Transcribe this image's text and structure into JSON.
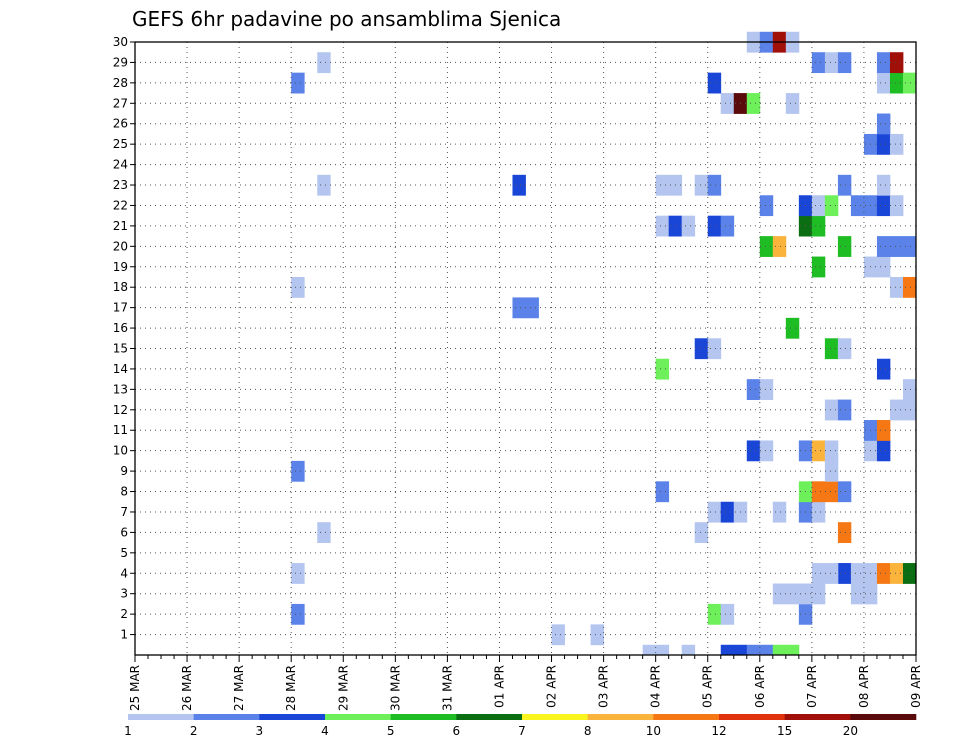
{
  "chart_data": {
    "type": "heatmap",
    "title": "GEFS 6hr padavine po ansamblima Sjenica",
    "x_tick_labels": [
      "25 MAR",
      "26 MAR",
      "27 MAR",
      "28 MAR",
      "29 MAR",
      "30 MAR",
      "31 MAR",
      "01 APR",
      "02 APR",
      "03 APR",
      "04 APR",
      "05 APR",
      "06 APR",
      "07 APR",
      "08 APR",
      "09 APR"
    ],
    "y_tick_labels": [
      "1",
      "2",
      "3",
      "4",
      "5",
      "6",
      "7",
      "8",
      "9",
      "10",
      "11",
      "12",
      "13",
      "14",
      "15",
      "16",
      "17",
      "18",
      "19",
      "20",
      "21",
      "22",
      "23",
      "24",
      "25",
      "26",
      "27",
      "28",
      "29",
      "30"
    ],
    "time_steps": 60,
    "members_range": [
      0,
      30
    ],
    "grid": true,
    "legend": {
      "position": "bottom",
      "labels": [
        "1",
        "2",
        "3",
        "4",
        "5",
        "6",
        "7",
        "8",
        "10",
        "12",
        "15",
        "20"
      ],
      "colors": [
        "#b4c6f0",
        "#5a82e8",
        "#1a46d8",
        "#6ef05a",
        "#1fbd24",
        "#0c6e12",
        "#faf51e",
        "#fab43c",
        "#f57814",
        "#e0320c",
        "#a01008",
        "#5a0a0a"
      ]
    },
    "cells": [
      [
        0,
        39,
        1
      ],
      [
        0,
        40,
        1
      ],
      [
        0,
        42,
        1
      ],
      [
        0,
        45,
        3
      ],
      [
        0,
        46,
        3
      ],
      [
        0,
        47,
        2
      ],
      [
        0,
        48,
        2
      ],
      [
        0,
        49,
        4
      ],
      [
        0,
        50,
        4
      ],
      [
        1,
        32,
        1
      ],
      [
        1,
        35,
        1
      ],
      [
        2,
        12,
        2
      ],
      [
        2,
        44,
        4
      ],
      [
        2,
        45,
        1
      ],
      [
        2,
        51,
        2
      ],
      [
        3,
        49,
        1
      ],
      [
        3,
        50,
        1
      ],
      [
        3,
        51,
        1
      ],
      [
        3,
        52,
        1
      ],
      [
        3,
        55,
        1
      ],
      [
        3,
        56,
        1
      ],
      [
        4,
        12,
        1
      ],
      [
        4,
        54,
        3
      ],
      [
        4,
        52,
        1
      ],
      [
        4,
        53,
        1
      ],
      [
        4,
        55,
        1
      ],
      [
        4,
        56,
        1
      ],
      [
        4,
        57,
        10
      ],
      [
        4,
        58,
        8
      ],
      [
        4,
        59,
        6
      ],
      [
        4,
        60,
        2
      ],
      [
        4,
        61,
        1
      ],
      [
        4,
        62,
        1
      ],
      [
        4,
        63,
        8
      ],
      [
        4,
        64,
        3
      ],
      [
        4,
        65,
        1
      ],
      [
        5,
        65,
        1
      ],
      [
        6,
        14,
        1
      ],
      [
        6,
        43,
        1
      ],
      [
        6,
        54,
        10
      ],
      [
        6,
        64,
        3
      ],
      [
        6,
        65,
        5
      ],
      [
        7,
        44,
        1
      ],
      [
        7,
        45,
        3
      ],
      [
        7,
        46,
        1
      ],
      [
        7,
        49,
        1
      ],
      [
        7,
        51,
        2
      ],
      [
        7,
        52,
        1
      ],
      [
        8,
        40,
        2
      ],
      [
        8,
        51,
        4
      ],
      [
        8,
        52,
        10
      ],
      [
        8,
        53,
        10
      ],
      [
        8,
        54,
        2
      ],
      [
        9,
        12,
        2
      ],
      [
        9,
        53,
        1
      ],
      [
        9,
        64,
        1
      ],
      [
        9,
        65,
        2
      ],
      [
        10,
        47,
        3
      ],
      [
        10,
        48,
        1
      ],
      [
        10,
        51,
        2
      ],
      [
        10,
        52,
        8
      ],
      [
        10,
        53,
        1
      ],
      [
        10,
        56,
        1
      ],
      [
        10,
        57,
        3
      ],
      [
        11,
        56,
        2
      ],
      [
        11,
        57,
        10
      ],
      [
        11,
        65,
        6
      ],
      [
        11,
        66,
        3
      ],
      [
        12,
        53,
        1
      ],
      [
        12,
        54,
        2
      ],
      [
        12,
        58,
        1
      ],
      [
        12,
        59,
        1
      ],
      [
        12,
        60,
        4
      ],
      [
        12,
        64,
        1
      ],
      [
        12,
        65,
        4
      ],
      [
        13,
        47,
        2
      ],
      [
        13,
        48,
        1
      ],
      [
        13,
        59,
        1
      ],
      [
        13,
        60,
        1
      ],
      [
        13,
        65,
        2
      ],
      [
        14,
        40,
        4
      ],
      [
        14,
        57,
        3
      ],
      [
        15,
        43,
        3
      ],
      [
        15,
        44,
        1
      ],
      [
        15,
        53,
        5
      ],
      [
        15,
        54,
        1
      ],
      [
        16,
        50,
        5
      ],
      [
        17,
        29,
        2
      ],
      [
        17,
        30,
        2
      ],
      [
        18,
        12,
        1
      ],
      [
        18,
        58,
        1
      ],
      [
        18,
        59,
        10
      ],
      [
        18,
        60,
        4
      ],
      [
        18,
        61,
        2
      ],
      [
        18,
        62,
        4
      ],
      [
        18,
        63,
        12
      ],
      [
        18,
        64,
        1
      ],
      [
        19,
        52,
        5
      ],
      [
        19,
        56,
        1
      ],
      [
        19,
        57,
        1
      ],
      [
        20,
        48,
        5
      ],
      [
        20,
        49,
        8
      ],
      [
        20,
        54,
        5
      ],
      [
        20,
        57,
        2
      ],
      [
        20,
        58,
        2
      ],
      [
        20,
        59,
        2
      ],
      [
        21,
        40,
        1
      ],
      [
        21,
        41,
        3
      ],
      [
        21,
        42,
        1
      ],
      [
        21,
        44,
        3
      ],
      [
        21,
        45,
        2
      ],
      [
        21,
        51,
        6
      ],
      [
        21,
        52,
        5
      ],
      [
        21,
        66,
        1
      ],
      [
        22,
        48,
        2
      ],
      [
        22,
        51,
        3
      ],
      [
        22,
        52,
        1
      ],
      [
        22,
        53,
        4
      ],
      [
        22,
        55,
        2
      ],
      [
        22,
        56,
        2
      ],
      [
        22,
        57,
        3
      ],
      [
        22,
        58,
        1
      ],
      [
        22,
        60,
        3
      ],
      [
        22,
        61,
        4
      ],
      [
        22,
        62,
        3
      ],
      [
        22,
        63,
        2
      ],
      [
        22,
        65,
        1
      ],
      [
        22,
        66,
        4
      ],
      [
        23,
        14,
        1
      ],
      [
        23,
        29,
        3
      ],
      [
        23,
        40,
        1
      ],
      [
        23,
        41,
        1
      ],
      [
        23,
        43,
        1
      ],
      [
        23,
        44,
        2
      ],
      [
        23,
        54,
        2
      ],
      [
        23,
        57,
        1
      ],
      [
        23,
        62,
        1
      ],
      [
        23,
        63,
        6
      ],
      [
        23,
        64,
        8
      ],
      [
        23,
        65,
        2
      ],
      [
        24,
        60,
        3
      ],
      [
        25,
        56,
        2
      ],
      [
        25,
        57,
        3
      ],
      [
        25,
        58,
        1
      ],
      [
        26,
        57,
        2
      ],
      [
        27,
        45,
        1
      ],
      [
        27,
        46,
        20
      ],
      [
        27,
        47,
        4
      ],
      [
        27,
        50,
        1
      ],
      [
        28,
        12,
        2
      ],
      [
        28,
        44,
        3
      ],
      [
        28,
        57,
        1
      ],
      [
        28,
        58,
        5
      ],
      [
        28,
        59,
        4
      ],
      [
        28,
        60,
        1
      ],
      [
        28,
        64,
        1
      ],
      [
        28,
        65,
        1
      ],
      [
        29,
        14,
        1
      ],
      [
        29,
        52,
        2
      ],
      [
        29,
        53,
        1
      ],
      [
        29,
        54,
        2
      ],
      [
        29,
        57,
        2
      ],
      [
        29,
        58,
        15
      ],
      [
        30,
        47,
        1
      ],
      [
        30,
        48,
        2
      ],
      [
        30,
        49,
        15
      ],
      [
        30,
        50,
        1
      ],
      [
        30,
        64,
        1
      ],
      [
        30,
        65,
        2
      ]
    ]
  }
}
